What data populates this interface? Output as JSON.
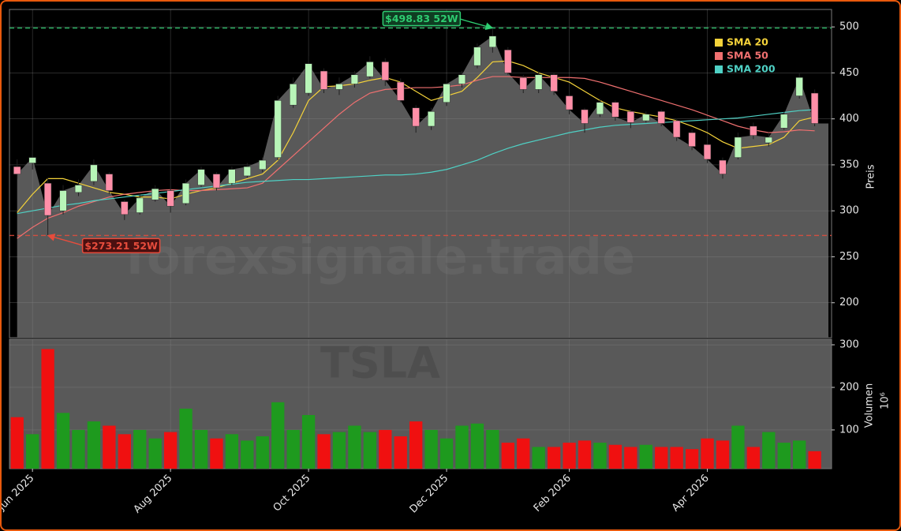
{
  "chart_data": [
    {
      "type": "candlestick",
      "categories": [
        null,
        "Jun 2025",
        null,
        null,
        null,
        null,
        null,
        null,
        null,
        null,
        "Aug 2025",
        null,
        null,
        null,
        null,
        null,
        null,
        null,
        null,
        "Oct 2025",
        null,
        null,
        null,
        null,
        null,
        null,
        null,
        null,
        "Dec 2025",
        null,
        null,
        null,
        null,
        null,
        null,
        null,
        "Feb 2026",
        null,
        null,
        null,
        null,
        null,
        null,
        null,
        null,
        "Apr 2026",
        null,
        null,
        null,
        null,
        null,
        null,
        null
      ],
      "open": [
        348,
        352,
        330,
        300,
        320,
        332,
        340,
        310,
        298,
        312,
        322,
        308,
        328,
        340,
        330,
        338,
        345,
        358,
        415,
        428,
        452,
        432,
        438,
        446,
        462,
        440,
        412,
        392,
        418,
        438,
        458,
        478,
        475,
        445,
        432,
        448,
        425,
        410,
        405,
        418,
        408,
        398,
        408,
        398,
        385,
        372,
        355,
        358,
        392,
        374,
        390,
        425,
        428
      ],
      "high": [
        356,
        366,
        336,
        328,
        334,
        356,
        342,
        312,
        318,
        328,
        324,
        334,
        348,
        342,
        348,
        352,
        358,
        425,
        445,
        468,
        455,
        445,
        452,
        468,
        466,
        444,
        415,
        412,
        442,
        452,
        482,
        498.83,
        478,
        448,
        452,
        450,
        428,
        412,
        422,
        420,
        410,
        408,
        410,
        400,
        388,
        375,
        358,
        385,
        396,
        385,
        408,
        450,
        432
      ],
      "low": [
        335,
        345,
        273.21,
        296,
        316,
        328,
        318,
        290,
        296,
        310,
        298,
        306,
        326,
        322,
        328,
        336,
        342,
        355,
        412,
        425,
        428,
        426,
        434,
        444,
        436,
        418,
        385,
        388,
        414,
        434,
        455,
        472,
        448,
        428,
        428,
        426,
        405,
        385,
        402,
        398,
        390,
        396,
        392,
        376,
        366,
        352,
        335,
        356,
        378,
        370,
        388,
        422,
        392
      ],
      "close": [
        340,
        358,
        295,
        322,
        328,
        350,
        322,
        296,
        314,
        324,
        305,
        330,
        345,
        325,
        345,
        348,
        355,
        420,
        438,
        460,
        432,
        438,
        448,
        462,
        442,
        420,
        392,
        408,
        438,
        448,
        478,
        490,
        450,
        432,
        448,
        430,
        410,
        395,
        418,
        402,
        396,
        405,
        395,
        380,
        370,
        356,
        340,
        380,
        382,
        380,
        405,
        445,
        395
      ],
      "up_color": "#b8f5b8",
      "down_color": "#ff8fa8",
      "area_color": "#595959",
      "ylim": [
        162,
        519
      ],
      "yticks": [
        200,
        250,
        300,
        350,
        400,
        450,
        500
      ],
      "grid": true,
      "y_label": "Preis",
      "watermark": "forexsignale.trade",
      "legend": "upper right",
      "series": [
        {
          "name": "SMA 20",
          "color": "#f5d33a",
          "values": [
            298,
            318,
            335,
            335,
            330,
            325,
            320,
            318,
            315,
            315,
            313,
            318,
            322,
            325,
            330,
            335,
            340,
            355,
            385,
            420,
            435,
            436,
            438,
            442,
            445,
            440,
            430,
            420,
            425,
            430,
            445,
            462,
            463,
            458,
            450,
            445,
            440,
            430,
            420,
            412,
            408,
            405,
            402,
            398,
            392,
            385,
            375,
            368,
            370,
            372,
            380,
            398,
            402
          ]
        },
        {
          "name": "SMA 50",
          "color": "#f07070",
          "values": [
            270,
            282,
            292,
            298,
            305,
            310,
            315,
            318,
            320,
            322,
            323,
            322,
            322,
            323,
            324,
            325,
            330,
            345,
            360,
            375,
            390,
            405,
            418,
            428,
            432,
            433,
            434,
            434,
            435,
            437,
            442,
            446,
            446,
            445,
            445,
            445,
            445,
            444,
            440,
            435,
            430,
            425,
            420,
            415,
            410,
            404,
            398,
            392,
            388,
            385,
            386,
            388,
            387
          ]
        },
        {
          "name": "SMA 200",
          "color": "#4fd1c5",
          "values": [
            297,
            300,
            303,
            306,
            308,
            311,
            313,
            315,
            317,
            319,
            321,
            323,
            325,
            327,
            329,
            331,
            332,
            333,
            334,
            334,
            335,
            336,
            337,
            338,
            339,
            339,
            340,
            342,
            345,
            350,
            355,
            362,
            368,
            373,
            377,
            381,
            385,
            388,
            391,
            393,
            394,
            395,
            396,
            397,
            398,
            399,
            400,
            401,
            403,
            405,
            407,
            409,
            410
          ]
        }
      ],
      "annotations": [
        {
          "text": "$498.83 52W",
          "value": 498.83,
          "color": "#2ecc71",
          "fill": "#0f3d22"
        },
        {
          "text": "$273.21 52W",
          "value": 273.21,
          "color": "#e74c3c",
          "fill": "#4a1010"
        }
      ]
    },
    {
      "type": "bar",
      "values": [
        130,
        90,
        290,
        140,
        100,
        120,
        110,
        90,
        100,
        80,
        95,
        150,
        100,
        80,
        90,
        75,
        85,
        165,
        100,
        135,
        90,
        95,
        110,
        95,
        100,
        85,
        120,
        100,
        80,
        110,
        115,
        100,
        70,
        80,
        60,
        60,
        70,
        75,
        70,
        65,
        60,
        65,
        60,
        60,
        55,
        80,
        75,
        110,
        60,
        95,
        70,
        75,
        50
      ],
      "up_color": "#1e9a1e",
      "down_color": "#f01010",
      "ylim": [
        9,
        313
      ],
      "yticks": [
        100,
        200,
        300
      ],
      "grid": true,
      "y_label": "Volumen",
      "y_unit": "10⁶",
      "watermark": "TSLA"
    }
  ]
}
